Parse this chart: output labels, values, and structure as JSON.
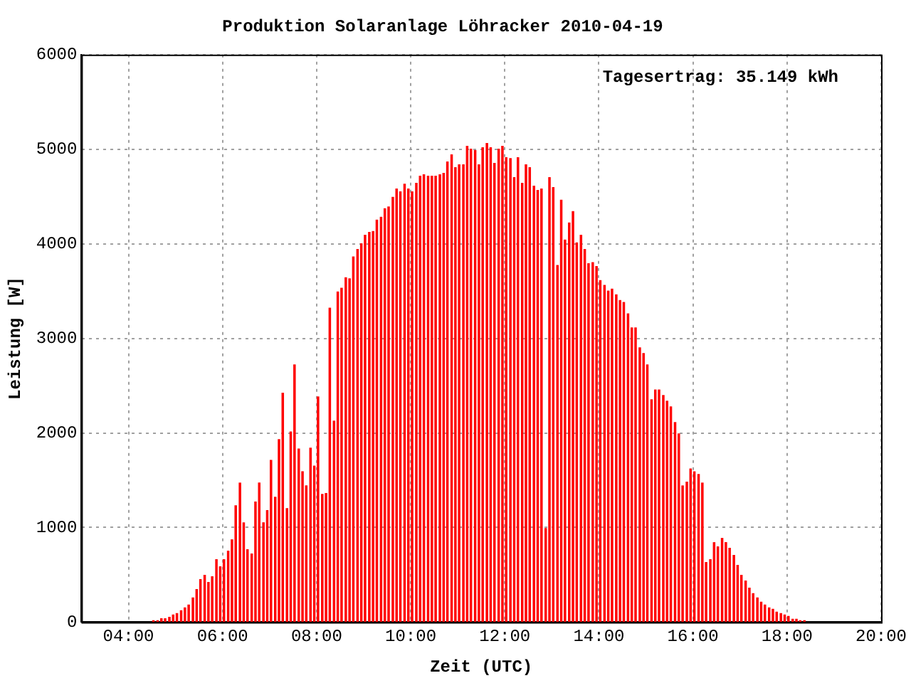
{
  "chart_data": {
    "type": "bar",
    "title": "Produktion Solaranlage Löhracker 2010-04-19",
    "xlabel": "Zeit (UTC)",
    "ylabel": "Leistung [W]",
    "annotations": [
      "Tagesertrag: 35.149 kWh"
    ],
    "x": [
      4.53,
      4.62,
      4.7,
      4.78,
      4.87,
      4.95,
      5.03,
      5.12,
      5.2,
      5.28,
      5.37,
      5.45,
      5.53,
      5.62,
      5.7,
      5.78,
      5.87,
      5.95,
      6.03,
      6.12,
      6.2,
      6.28,
      6.37,
      6.45,
      6.53,
      6.62,
      6.7,
      6.78,
      6.87,
      6.95,
      7.03,
      7.12,
      7.2,
      7.28,
      7.37,
      7.45,
      7.53,
      7.62,
      7.7,
      7.78,
      7.87,
      7.95,
      8.03,
      8.12,
      8.2,
      8.28,
      8.37,
      8.45,
      8.53,
      8.62,
      8.7,
      8.78,
      8.87,
      8.95,
      9.03,
      9.12,
      9.2,
      9.28,
      9.37,
      9.45,
      9.53,
      9.62,
      9.7,
      9.78,
      9.87,
      9.95,
      10.03,
      10.12,
      10.2,
      10.28,
      10.37,
      10.45,
      10.53,
      10.62,
      10.7,
      10.78,
      10.87,
      10.95,
      11.03,
      11.12,
      11.2,
      11.28,
      11.37,
      11.45,
      11.53,
      11.62,
      11.7,
      11.78,
      11.87,
      11.95,
      12.03,
      12.12,
      12.2,
      12.28,
      12.37,
      12.45,
      12.53,
      12.62,
      12.7,
      12.78,
      12.87,
      12.95,
      13.03,
      13.12,
      13.2,
      13.28,
      13.37,
      13.45,
      13.53,
      13.62,
      13.7,
      13.78,
      13.87,
      13.95,
      14.03,
      14.12,
      14.2,
      14.28,
      14.37,
      14.45,
      14.53,
      14.62,
      14.7,
      14.78,
      14.87,
      14.95,
      15.03,
      15.12,
      15.2,
      15.28,
      15.37,
      15.45,
      15.53,
      15.62,
      15.7,
      15.78,
      15.87,
      15.95,
      16.03,
      16.12,
      16.2,
      16.28,
      16.37,
      16.45,
      16.53,
      16.62,
      16.7,
      16.78,
      16.87,
      16.95,
      17.03,
      17.12,
      17.2,
      17.28,
      17.37,
      17.45,
      17.53,
      17.62,
      17.7,
      17.78,
      17.87,
      17.95,
      18.03,
      18.12,
      18.2,
      18.28,
      18.37
    ],
    "series": [
      {
        "color": "#ff0000",
        "values": [
          15,
          15,
          35,
          35,
          50,
          75,
          90,
          120,
          150,
          180,
          255,
          345,
          450,
          495,
          420,
          480,
          660,
          585,
          660,
          750,
          870,
          1230,
          1470,
          1050,
          765,
          720,
          1270,
          1470,
          1050,
          1180,
          1710,
          1320,
          1930,
          2420,
          1200,
          2010,
          2720,
          1830,
          1590,
          1440,
          1840,
          1650,
          2380,
          1350,
          1360,
          3320,
          2125,
          3490,
          3530,
          3640,
          3630,
          3860,
          3940,
          4000,
          4090,
          4120,
          4130,
          4250,
          4280,
          4370,
          4390,
          4490,
          4580,
          4550,
          4630,
          4580,
          4550,
          4640,
          4715,
          4730,
          4715,
          4715,
          4715,
          4730,
          4745,
          4865,
          4940,
          4805,
          4835,
          4835,
          5030,
          5000,
          4985,
          4835,
          5015,
          5060,
          5015,
          4850,
          5000,
          5030,
          4910,
          4900,
          4700,
          4910,
          4640,
          4835,
          4805,
          4610,
          4565,
          4580,
          990,
          4700,
          4595,
          3770,
          4460,
          4040,
          4220,
          4340,
          4010,
          4090,
          3940,
          3790,
          3800,
          3760,
          3610,
          3560,
          3500,
          3520,
          3460,
          3400,
          3380,
          3260,
          3110,
          3110,
          2900,
          2840,
          2720,
          2350,
          2455,
          2455,
          2395,
          2335,
          2275,
          2110,
          1990,
          1440,
          1480,
          1620,
          1590,
          1560,
          1470,
          630,
          660,
          840,
          795,
          885,
          840,
          780,
          705,
          600,
          495,
          435,
          360,
          300,
          255,
          210,
          180,
          150,
          135,
          105,
          90,
          75,
          60,
          30,
          30,
          15,
          15
        ]
      }
    ],
    "xlim": [
      3,
      20
    ],
    "xticks": [
      {
        "value": 4,
        "label": "04:00"
      },
      {
        "value": 6,
        "label": "06:00"
      },
      {
        "value": 8,
        "label": "08:00"
      },
      {
        "value": 10,
        "label": "10:00"
      },
      {
        "value": 12,
        "label": "12:00"
      },
      {
        "value": 14,
        "label": "14:00"
      },
      {
        "value": 16,
        "label": "16:00"
      },
      {
        "value": 18,
        "label": "18:00"
      },
      {
        "value": 20,
        "label": "20:00"
      }
    ],
    "ylim": [
      0,
      6000
    ],
    "yticks": [
      0,
      1000,
      2000,
      3000,
      4000,
      5000,
      6000
    ],
    "grid": true,
    "legend": false
  }
}
